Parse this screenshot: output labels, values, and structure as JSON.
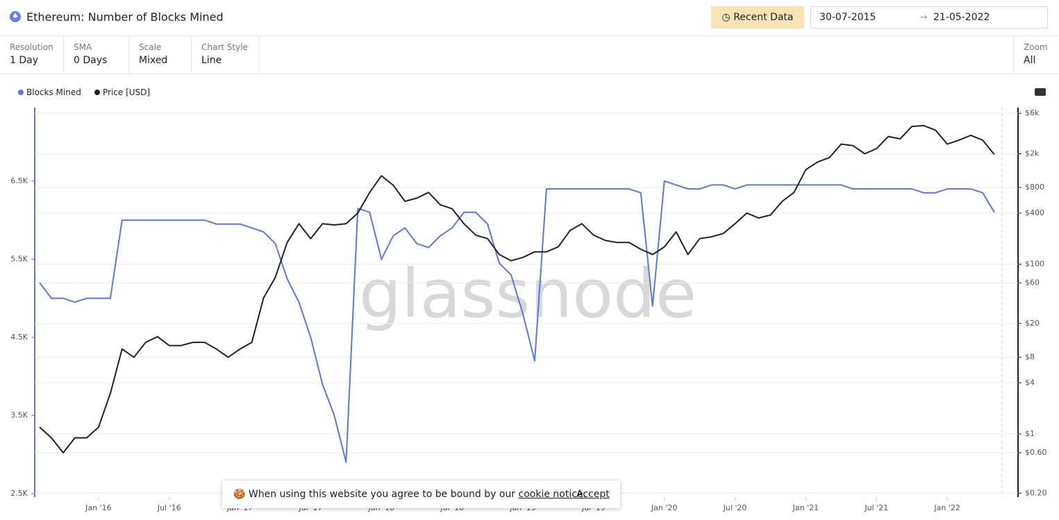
{
  "header": {
    "title": "Ethereum: Number of Blocks Mined",
    "recent": "Recent Data",
    "date_from": "30-07-2015",
    "date_to": "21-05-2022"
  },
  "controls": [
    {
      "label": "Resolution",
      "value": "1 Day"
    },
    {
      "label": "SMA",
      "value": "0 Days"
    },
    {
      "label": "Scale",
      "value": "Mixed"
    },
    {
      "label": "Chart Style",
      "value": "Line"
    }
  ],
  "zoom": {
    "label": "Zoom",
    "value": "All"
  },
  "watermark": "glassnode",
  "cookie_banner": {
    "text": "When using this website you agree to be bound by our",
    "link": "cookie notice",
    "end": ".",
    "button": "Accept"
  },
  "chart_data": {
    "type": "line",
    "x": [
      "2015-08",
      "2015-09",
      "2015-10",
      "2015-11",
      "2015-12",
      "2016-01",
      "2016-02",
      "2016-03",
      "2016-04",
      "2016-05",
      "2016-06",
      "2016-07",
      "2016-08",
      "2016-09",
      "2016-10",
      "2016-11",
      "2016-12",
      "2017-01",
      "2017-02",
      "2017-03",
      "2017-04",
      "2017-05",
      "2017-06",
      "2017-07",
      "2017-08",
      "2017-09",
      "2017-10",
      "2017-11",
      "2017-12",
      "2018-01",
      "2018-02",
      "2018-03",
      "2018-04",
      "2018-05",
      "2018-06",
      "2018-07",
      "2018-08",
      "2018-09",
      "2018-10",
      "2018-11",
      "2018-12",
      "2019-01",
      "2019-02",
      "2019-03",
      "2019-04",
      "2019-05",
      "2019-06",
      "2019-07",
      "2019-08",
      "2019-09",
      "2019-10",
      "2019-11",
      "2019-12",
      "2020-01",
      "2020-02",
      "2020-03",
      "2020-04",
      "2020-05",
      "2020-06",
      "2020-07",
      "2020-08",
      "2020-09",
      "2020-10",
      "2020-11",
      "2020-12",
      "2021-01",
      "2021-02",
      "2021-03",
      "2021-04",
      "2021-05",
      "2021-06",
      "2021-07",
      "2021-08",
      "2021-09",
      "2021-10",
      "2021-11",
      "2021-12",
      "2022-01",
      "2022-02",
      "2022-03",
      "2022-04",
      "2022-05"
    ],
    "series": [
      {
        "name": "Blocks Mined",
        "color": "#5b77e0",
        "axis": "y",
        "values": [
          5200,
          5000,
          5000,
          4950,
          5000,
          5000,
          5000,
          6000,
          6000,
          6000,
          6000,
          6000,
          6000,
          6000,
          6000,
          5950,
          5950,
          5950,
          5900,
          5850,
          5700,
          5250,
          4950,
          4500,
          3900,
          3500,
          2900,
          6150,
          6100,
          5500,
          5800,
          5900,
          5700,
          5650,
          5800,
          5900,
          6100,
          6100,
          5950,
          5450,
          5300,
          4800,
          4200,
          6400,
          6400,
          6400,
          6400,
          6400,
          6400,
          6400,
          6400,
          6350,
          4900,
          6500,
          6450,
          6400,
          6400,
          6450,
          6450,
          6400,
          6450,
          6450,
          6450,
          6450,
          6450,
          6450,
          6450,
          6450,
          6450,
          6400,
          6400,
          6400,
          6400,
          6400,
          6400,
          6350,
          6350,
          6400,
          6400,
          6400,
          6350,
          6100
        ]
      },
      {
        "name": "Price [USD]",
        "color": "#222222",
        "axis": "y2",
        "values": [
          1.2,
          0.9,
          0.6,
          0.9,
          0.9,
          1.2,
          3,
          10,
          8,
          12,
          14,
          11,
          11,
          12,
          12,
          10,
          8,
          10,
          12,
          40,
          70,
          180,
          300,
          200,
          300,
          290,
          300,
          400,
          700,
          1100,
          850,
          550,
          600,
          700,
          500,
          450,
          300,
          220,
          200,
          130,
          110,
          120,
          140,
          140,
          160,
          250,
          300,
          220,
          190,
          180,
          180,
          150,
          130,
          160,
          240,
          130,
          200,
          210,
          230,
          300,
          400,
          350,
          380,
          550,
          700,
          1300,
          1600,
          1800,
          2600,
          2500,
          2000,
          2300,
          3200,
          3000,
          4200,
          4300,
          3800,
          2600,
          2900,
          3300,
          2900,
          1950
        ]
      }
    ],
    "xlim": [
      "2015-08",
      "2022-05"
    ],
    "xticks": [
      {
        "value": "2016-01",
        "label": "Jan '16"
      },
      {
        "value": "2016-07",
        "label": "Jul '16"
      },
      {
        "value": "2017-01",
        "label": "Jan '17"
      },
      {
        "value": "2017-07",
        "label": "Jul '17"
      },
      {
        "value": "2018-01",
        "label": "Jan '18"
      },
      {
        "value": "2018-07",
        "label": "Jul '18"
      },
      {
        "value": "2019-01",
        "label": "Jan '19"
      },
      {
        "value": "2019-07",
        "label": "Jul '19"
      },
      {
        "value": "2020-01",
        "label": "Jan '20"
      },
      {
        "value": "2020-07",
        "label": "Jul '20"
      },
      {
        "value": "2021-01",
        "label": "Jan '21"
      },
      {
        "value": "2021-07",
        "label": "Jul '21"
      },
      {
        "value": "2022-01",
        "label": "Jan '22"
      }
    ],
    "ylim": [
      2456,
      7440
    ],
    "yticks": [
      {
        "value": 2500,
        "label": "2.5K"
      },
      {
        "value": 3500,
        "label": "3.5K"
      },
      {
        "value": 4500,
        "label": "4.5K"
      },
      {
        "value": 5500,
        "label": "5.5K"
      },
      {
        "value": 6500,
        "label": "6.5K"
      }
    ],
    "y2lim": [
      0.18,
      7000
    ],
    "y2log": true,
    "y2ticks": [
      {
        "value": 0.2,
        "label": "$0.20"
      },
      {
        "value": 0.6,
        "label": "$0.60"
      },
      {
        "value": 1,
        "label": "$1"
      },
      {
        "value": 4,
        "label": "$4"
      },
      {
        "value": 8,
        "label": "$8"
      },
      {
        "value": 20,
        "label": "$20"
      },
      {
        "value": 60,
        "label": "$60"
      },
      {
        "value": 100,
        "label": "$100"
      },
      {
        "value": 400,
        "label": "$400"
      },
      {
        "value": 800,
        "label": "$800"
      },
      {
        "value": 2000,
        "label": "$2k"
      },
      {
        "value": 6000,
        "label": "$6k"
      }
    ],
    "grid": true
  }
}
